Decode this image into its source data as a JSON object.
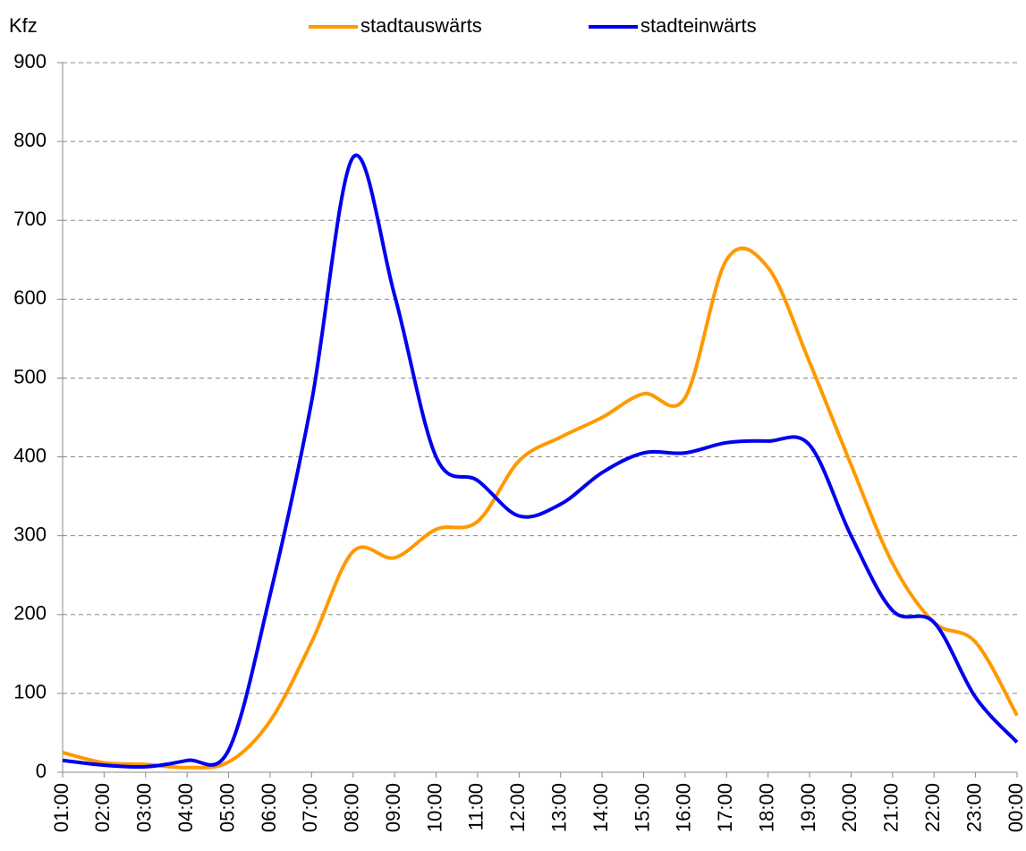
{
  "chart_data": {
    "type": "line",
    "y_label": "Kfz",
    "categories": [
      "01:00",
      "02:00",
      "03:00",
      "04:00",
      "05:00",
      "06:00",
      "07:00",
      "08:00",
      "09:00",
      "10:00",
      "11:00",
      "12:00",
      "13:00",
      "14:00",
      "15:00",
      "16:00",
      "17:00",
      "18:00",
      "19:00",
      "20:00",
      "21:00",
      "22:00",
      "23:00",
      "00:00"
    ],
    "series": [
      {
        "name": "stadtauswärts",
        "color": "#ff9900",
        "values": [
          25,
          12,
          10,
          6,
          13,
          65,
          165,
          280,
          272,
          308,
          318,
          395,
          425,
          450,
          480,
          475,
          650,
          640,
          520,
          390,
          265,
          190,
          165,
          72
        ]
      },
      {
        "name": "stadteinwärts",
        "color": "#0000ee",
        "values": [
          15,
          9,
          7,
          15,
          28,
          225,
          470,
          780,
          605,
          400,
          370,
          325,
          340,
          380,
          405,
          405,
          418,
          420,
          415,
          300,
          205,
          190,
          95,
          38
        ]
      }
    ],
    "ylim": [
      0,
      900
    ],
    "yticks": [
      0,
      100,
      200,
      300,
      400,
      500,
      600,
      700,
      800,
      900
    ],
    "grid": true,
    "legend": "top"
  }
}
